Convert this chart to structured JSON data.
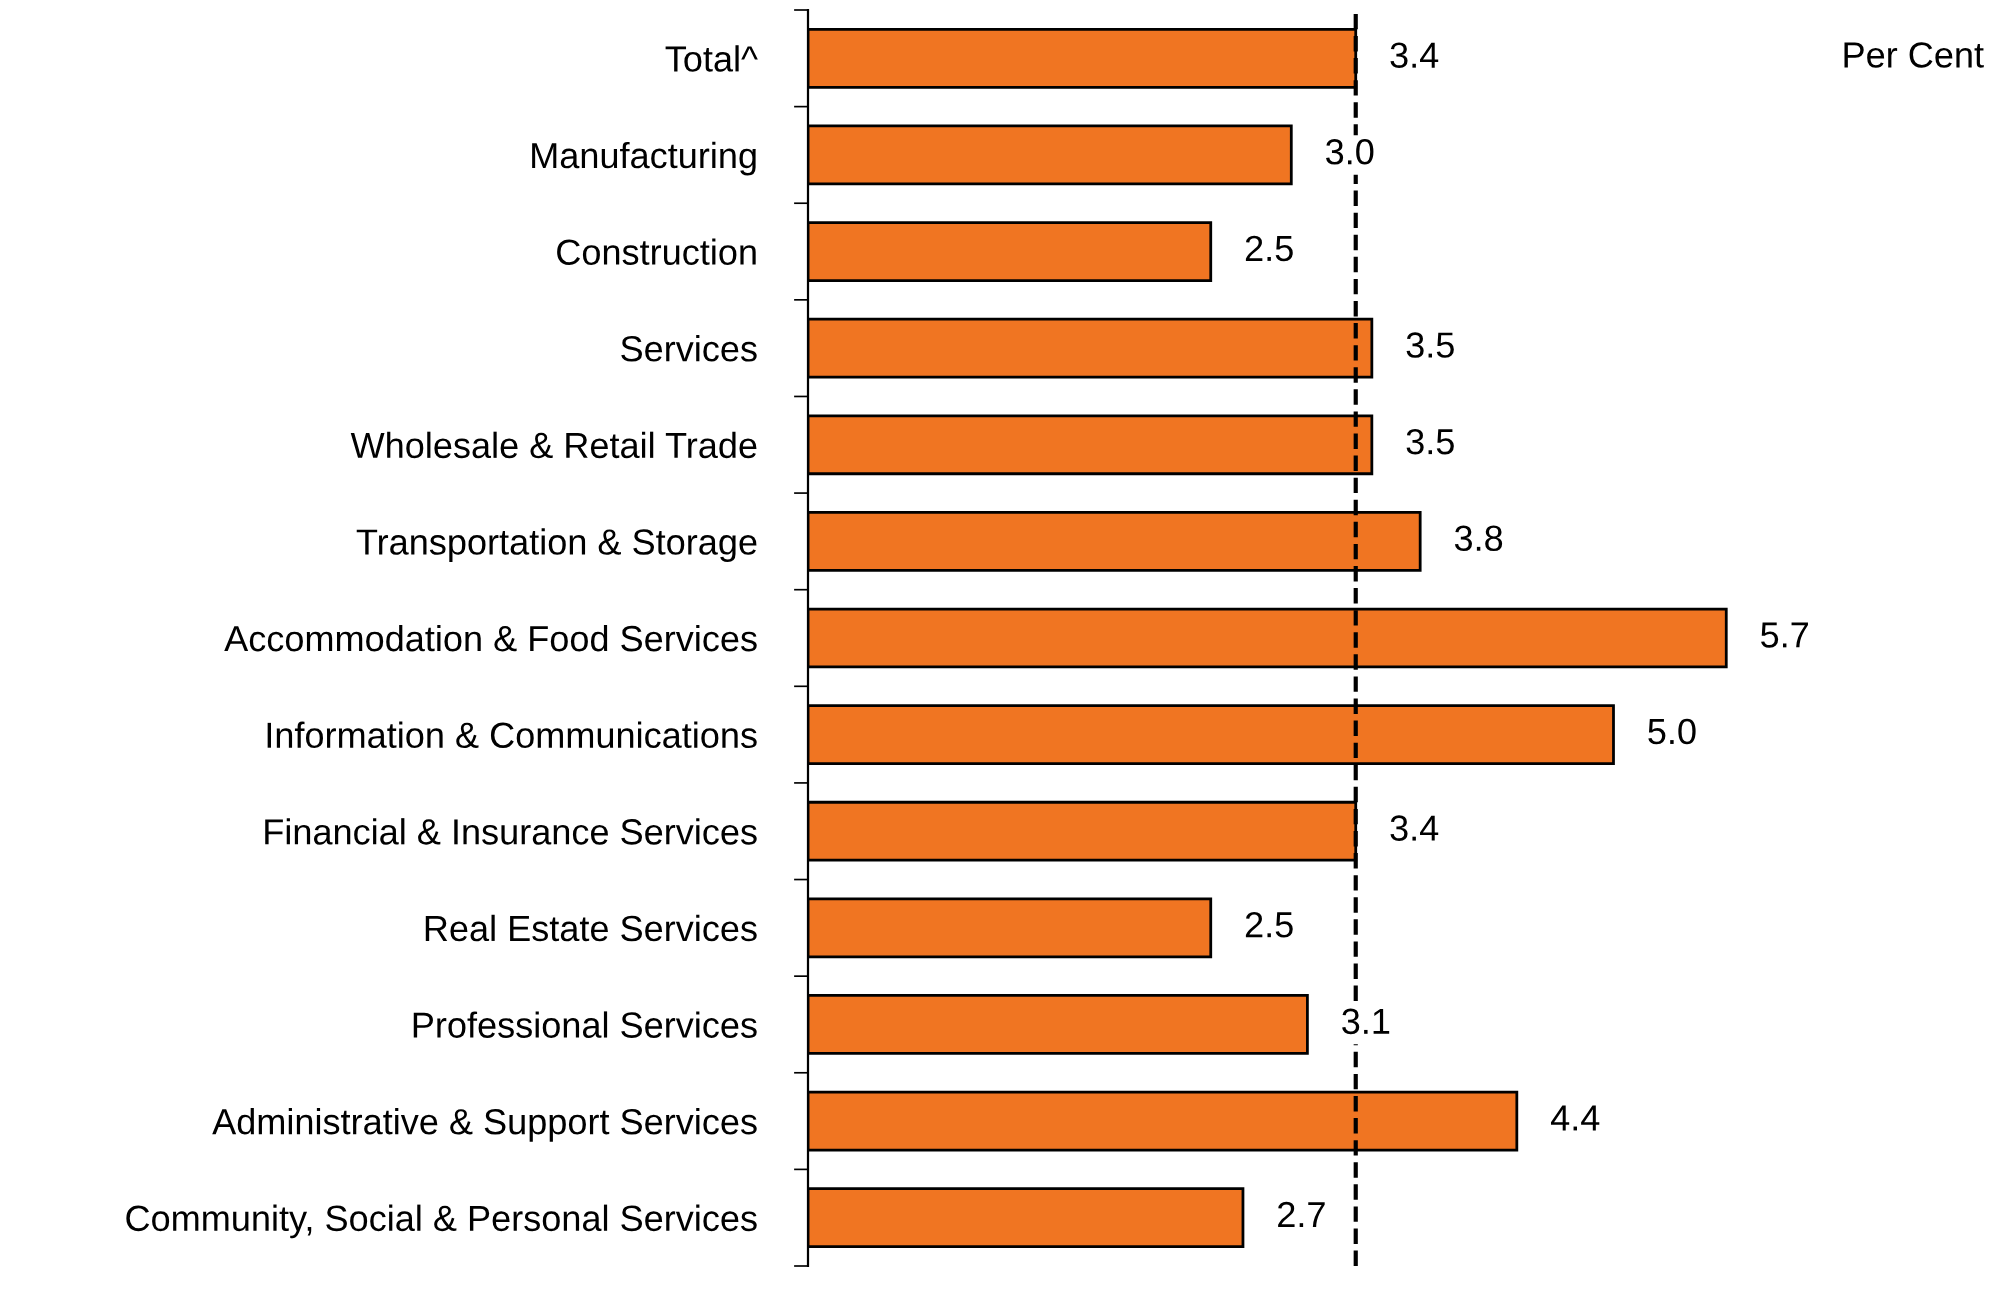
{
  "chart_data": {
    "type": "bar",
    "orientation": "horizontal",
    "categories": [
      "Total^",
      "Manufacturing",
      "Construction",
      "Services",
      "Wholesale & Retail Trade",
      "Transportation & Storage",
      "Accommodation & Food Services",
      "Information & Communications",
      "Financial & Insurance Services",
      "Real Estate Services",
      "Professional Services",
      "Administrative & Support Services",
      "Community, Social & Personal Services"
    ],
    "values": [
      3.4,
      3.0,
      2.5,
      3.5,
      3.5,
      3.8,
      5.7,
      5.0,
      3.4,
      2.5,
      3.1,
      4.4,
      2.7
    ],
    "color": "#f07522",
    "value_labels": [
      "3.4",
      "3.0",
      "2.5",
      "3.5",
      "3.5",
      "3.8",
      "5.7",
      "5.0",
      "3.4",
      "2.5",
      "3.1",
      "4.4",
      "2.7"
    ],
    "ref_lines": [
      {
        "axis": "x",
        "value": 3.4,
        "color": "#000000",
        "line_style": "dashed"
      }
    ],
    "annotations": [
      "Per Cent"
    ],
    "grid": false,
    "legend": false
  }
}
